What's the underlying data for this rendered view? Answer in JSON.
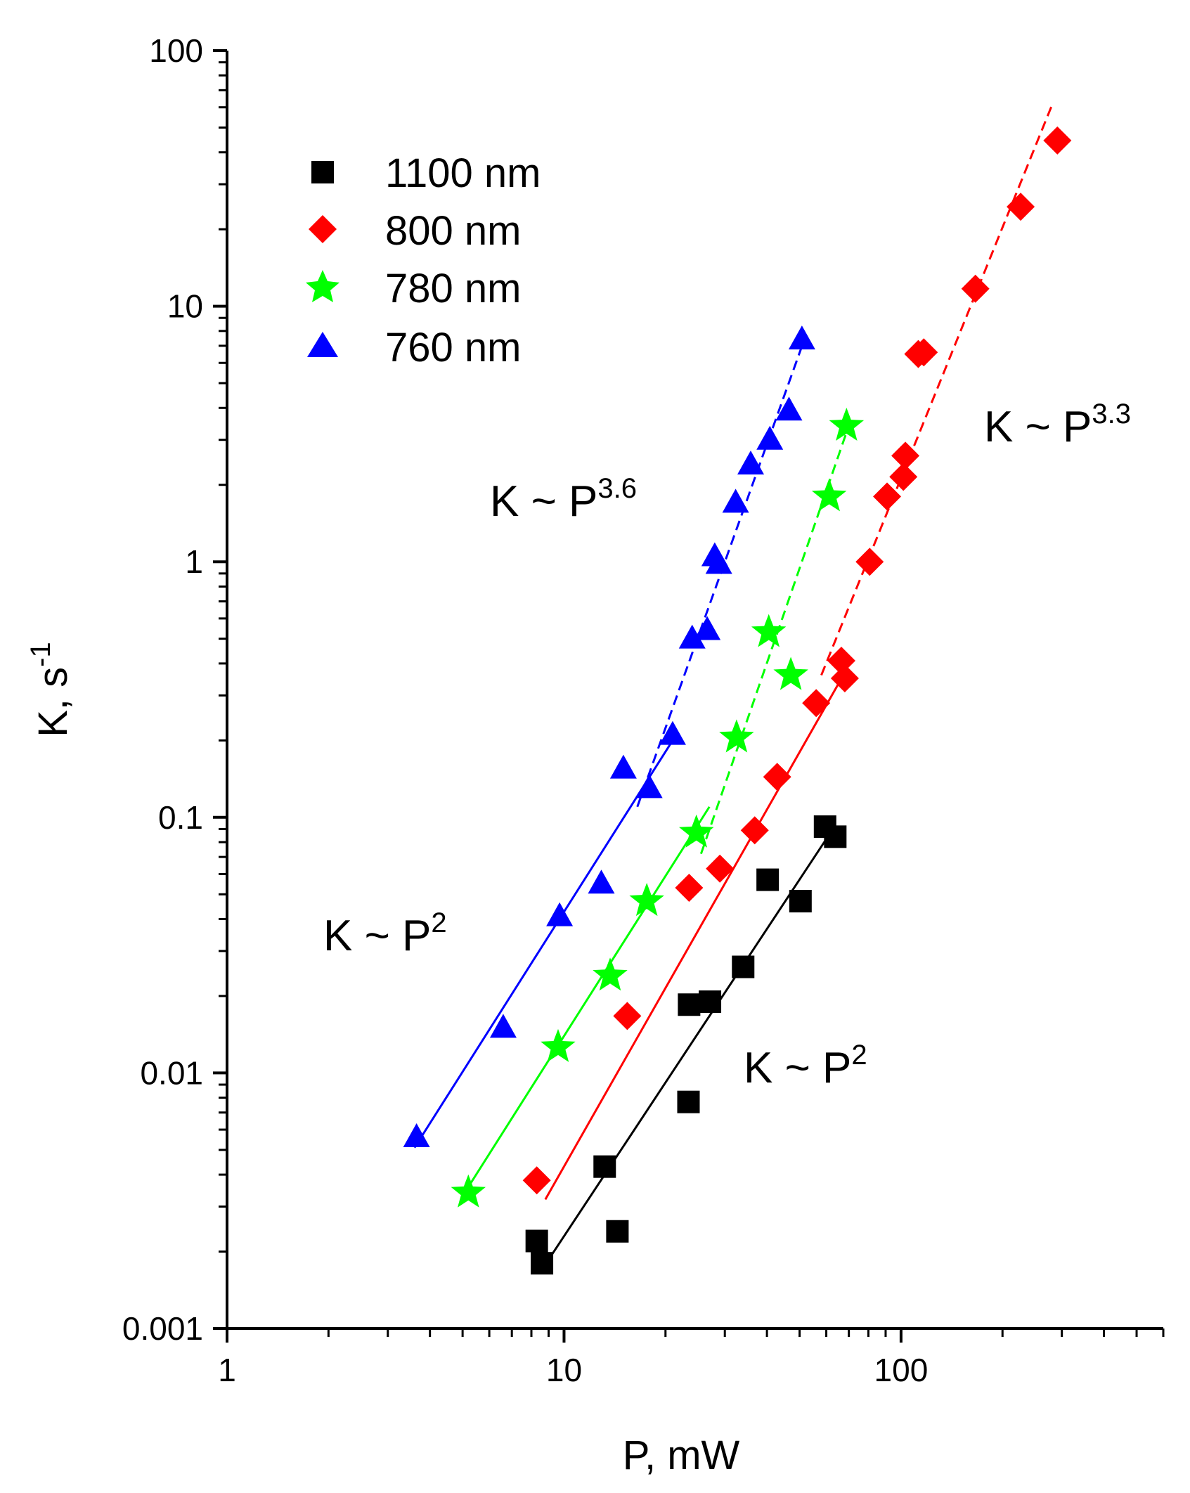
{
  "chart_data": {
    "type": "scatter",
    "xlabel": "P, mW",
    "ylabel": {
      "base": "K, s",
      "sup": "-1"
    },
    "xscale": "log",
    "yscale": "log",
    "xlim": [
      1,
      600
    ],
    "ylim": [
      0.001,
      100
    ],
    "x_ticks": [
      {
        "value": 1,
        "label": "1"
      },
      {
        "value": 10,
        "label": "10"
      },
      {
        "value": 100,
        "label": "100"
      }
    ],
    "y_ticks": [
      {
        "value": 0.001,
        "label": "0.001"
      },
      {
        "value": 0.01,
        "label": "0.01"
      },
      {
        "value": 0.1,
        "label": "0.1"
      },
      {
        "value": 1,
        "label": "1"
      },
      {
        "value": 10,
        "label": "10"
      },
      {
        "value": 100,
        "label": "100"
      }
    ],
    "legend_position": "top-left",
    "series": [
      {
        "name": "1100 nm",
        "color": "#000000",
        "marker": "square",
        "points": [
          [
            8.3,
            0.0022
          ],
          [
            8.6,
            0.0018
          ],
          [
            13.2,
            0.0043
          ],
          [
            14.4,
            0.0024
          ],
          [
            23.4,
            0.0077
          ],
          [
            23.5,
            0.0185
          ],
          [
            27.1,
            0.019
          ],
          [
            34.0,
            0.026
          ],
          [
            40.2,
            0.057
          ],
          [
            50.3,
            0.047
          ],
          [
            59.5,
            0.092
          ],
          [
            63.8,
            0.084
          ]
        ],
        "fits": [
          {
            "style": "solid",
            "from": [
              8.6,
              0.0017
            ],
            "to": [
              61,
              0.085
            ]
          }
        ]
      },
      {
        "name": "800 nm",
        "color": "#ff0000",
        "marker": "diamond",
        "points": [
          [
            8.3,
            0.0038
          ],
          [
            15.4,
            0.0167
          ],
          [
            23.5,
            0.053
          ],
          [
            29.0,
            0.063
          ],
          [
            36.8,
            0.089
          ],
          [
            42.9,
            0.144
          ],
          [
            56.0,
            0.28
          ],
          [
            66.5,
            0.41
          ],
          [
            68.1,
            0.35
          ],
          [
            80.7,
            1.0
          ],
          [
            90.9,
            1.8
          ],
          [
            101.6,
            2.15
          ],
          [
            103.0,
            2.6
          ],
          [
            112.5,
            6.5
          ],
          [
            116.8,
            6.6
          ],
          [
            166.2,
            11.7
          ],
          [
            226.4,
            24.5
          ],
          [
            291.0,
            44.5
          ]
        ],
        "fits": [
          {
            "style": "solid",
            "from": [
              8.8,
              0.0032
            ],
            "to": [
              69,
              0.38
            ]
          },
          {
            "style": "dashed",
            "from": [
              58,
              0.36
            ],
            "to": [
              283,
              63
            ]
          }
        ]
      },
      {
        "name": "780 nm",
        "color": "#00ff00",
        "marker": "star",
        "points": [
          [
            5.2,
            0.0034
          ],
          [
            9.6,
            0.0126
          ],
          [
            13.7,
            0.024
          ],
          [
            17.6,
            0.047
          ],
          [
            24.7,
            0.087
          ],
          [
            32.5,
            0.205
          ],
          [
            40.5,
            0.53
          ],
          [
            47.1,
            0.36
          ],
          [
            61.2,
            1.8
          ],
          [
            68.9,
            3.4
          ]
        ],
        "fits": [
          {
            "style": "solid",
            "from": [
              5.0,
              0.0033
            ],
            "to": [
              27,
              0.11
            ]
          },
          {
            "style": "dashed",
            "from": [
              25.5,
              0.072
            ],
            "to": [
              71,
              3.6
            ]
          }
        ]
      },
      {
        "name": "760 nm",
        "color": "#0000ff",
        "marker": "triangle",
        "points": [
          [
            3.65,
            0.0056
          ],
          [
            6.6,
            0.015
          ],
          [
            9.7,
            0.041
          ],
          [
            12.9,
            0.055
          ],
          [
            15.0,
            0.155
          ],
          [
            17.9,
            0.13
          ],
          [
            21.0,
            0.21
          ],
          [
            24.0,
            0.5
          ],
          [
            26.6,
            0.54
          ],
          [
            28.0,
            1.05
          ],
          [
            28.8,
            0.98
          ],
          [
            32.3,
            1.7
          ],
          [
            35.8,
            2.4
          ],
          [
            40.8,
            3.0
          ],
          [
            46.5,
            3.9
          ],
          [
            50.8,
            7.4
          ]
        ],
        "fits": [
          {
            "style": "solid",
            "from": [
              3.6,
              0.0051
            ],
            "to": [
              21.5,
              0.21
            ]
          },
          {
            "style": "dashed",
            "from": [
              16.5,
              0.11
            ],
            "to": [
              52,
              7.6
            ]
          }
        ]
      }
    ],
    "annotations": [
      {
        "base": "K ~ P",
        "sup": "3.6"
      },
      {
        "base": "K ~ P",
        "sup": "3.3"
      },
      {
        "base": "K ~ P",
        "sup": "2"
      },
      {
        "base": "K ~ P",
        "sup": "2"
      }
    ]
  }
}
